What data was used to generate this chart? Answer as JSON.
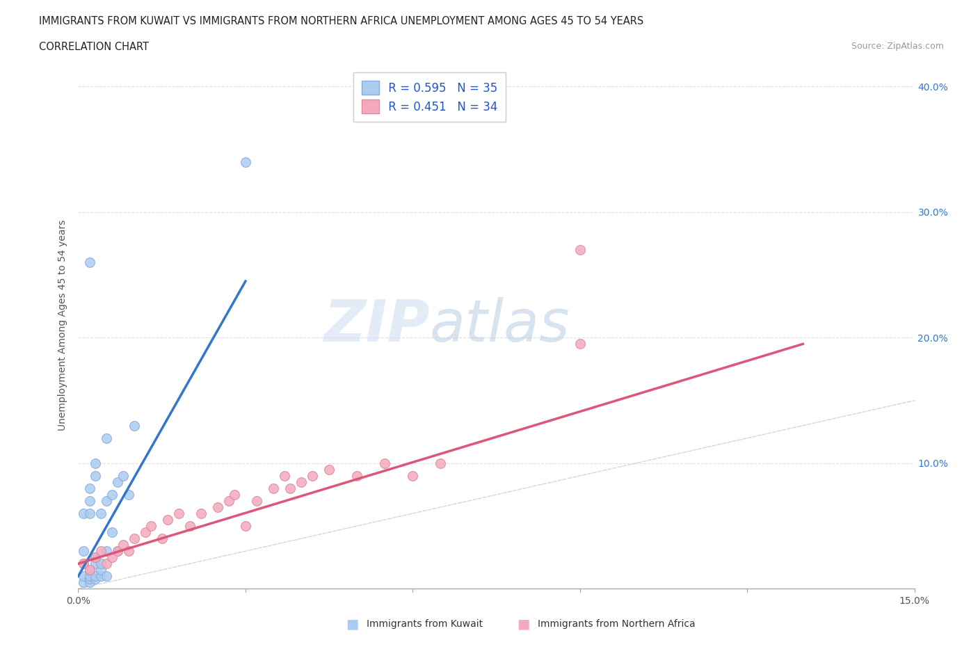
{
  "title_line1": "IMMIGRANTS FROM KUWAIT VS IMMIGRANTS FROM NORTHERN AFRICA UNEMPLOYMENT AMONG AGES 45 TO 54 YEARS",
  "title_line2": "CORRELATION CHART",
  "source_text": "Source: ZipAtlas.com",
  "ylabel": "Unemployment Among Ages 45 to 54 years",
  "xlim": [
    0.0,
    0.15
  ],
  "ylim": [
    0.0,
    0.42
  ],
  "xtick_positions": [
    0.0,
    0.03,
    0.06,
    0.09,
    0.12,
    0.15
  ],
  "xticklabels": [
    "0.0%",
    "",
    "",
    "",
    "",
    "15.0%"
  ],
  "ytick_positions": [
    0.0,
    0.1,
    0.2,
    0.3,
    0.4
  ],
  "yticklabels_right": [
    "",
    "10.0%",
    "20.0%",
    "30.0%",
    "40.0%"
  ],
  "legend_r1": "R = 0.595",
  "legend_n1": "N = 35",
  "legend_r2": "R = 0.451",
  "legend_n2": "N = 34",
  "kuwait_color": "#aaccf0",
  "kuwait_edge": "#88aadd",
  "northern_africa_color": "#f4aabc",
  "northern_africa_edge": "#dd88a0",
  "trend_kuwait_color": "#3377cc",
  "trend_northern_africa_color": "#dd5577",
  "diagonal_color": "#c0cfe0",
  "watermark_zip_color": "#c8d8ee",
  "watermark_atlas_color": "#b8c8e0",
  "kuwait_scatter_x": [
    0.001,
    0.001,
    0.001,
    0.001,
    0.001,
    0.002,
    0.002,
    0.002,
    0.002,
    0.002,
    0.002,
    0.002,
    0.003,
    0.003,
    0.003,
    0.003,
    0.003,
    0.003,
    0.004,
    0.004,
    0.004,
    0.004,
    0.005,
    0.005,
    0.005,
    0.005,
    0.006,
    0.006,
    0.007,
    0.007,
    0.008,
    0.009,
    0.01,
    0.002,
    0.03
  ],
  "kuwait_scatter_y": [
    0.005,
    0.01,
    0.02,
    0.03,
    0.06,
    0.005,
    0.008,
    0.01,
    0.015,
    0.06,
    0.07,
    0.08,
    0.008,
    0.01,
    0.02,
    0.025,
    0.09,
    0.1,
    0.01,
    0.015,
    0.02,
    0.06,
    0.01,
    0.03,
    0.07,
    0.12,
    0.045,
    0.075,
    0.03,
    0.085,
    0.09,
    0.075,
    0.13,
    0.26,
    0.34
  ],
  "northern_africa_scatter_x": [
    0.001,
    0.002,
    0.003,
    0.004,
    0.005,
    0.006,
    0.007,
    0.008,
    0.009,
    0.01,
    0.012,
    0.013,
    0.015,
    0.016,
    0.018,
    0.02,
    0.022,
    0.025,
    0.027,
    0.028,
    0.03,
    0.032,
    0.035,
    0.037,
    0.038,
    0.04,
    0.042,
    0.045,
    0.05,
    0.055,
    0.06,
    0.065,
    0.09,
    0.09
  ],
  "northern_africa_scatter_y": [
    0.02,
    0.015,
    0.025,
    0.03,
    0.02,
    0.025,
    0.03,
    0.035,
    0.03,
    0.04,
    0.045,
    0.05,
    0.04,
    0.055,
    0.06,
    0.05,
    0.06,
    0.065,
    0.07,
    0.075,
    0.05,
    0.07,
    0.08,
    0.09,
    0.08,
    0.085,
    0.09,
    0.095,
    0.09,
    0.1,
    0.09,
    0.1,
    0.195,
    0.27
  ],
  "kuwait_trend_x1": 0.0,
  "kuwait_trend_y1": 0.01,
  "kuwait_trend_x2": 0.03,
  "kuwait_trend_y2": 0.245,
  "northern_africa_trend_x1": 0.0,
  "northern_africa_trend_y1": 0.02,
  "northern_africa_trend_x2": 0.13,
  "northern_africa_trend_y2": 0.195,
  "legend_text_color": "#2255cc",
  "axis_label_color": "#555555",
  "grid_color": "#e0e0e0",
  "spine_color": "#cccccc"
}
